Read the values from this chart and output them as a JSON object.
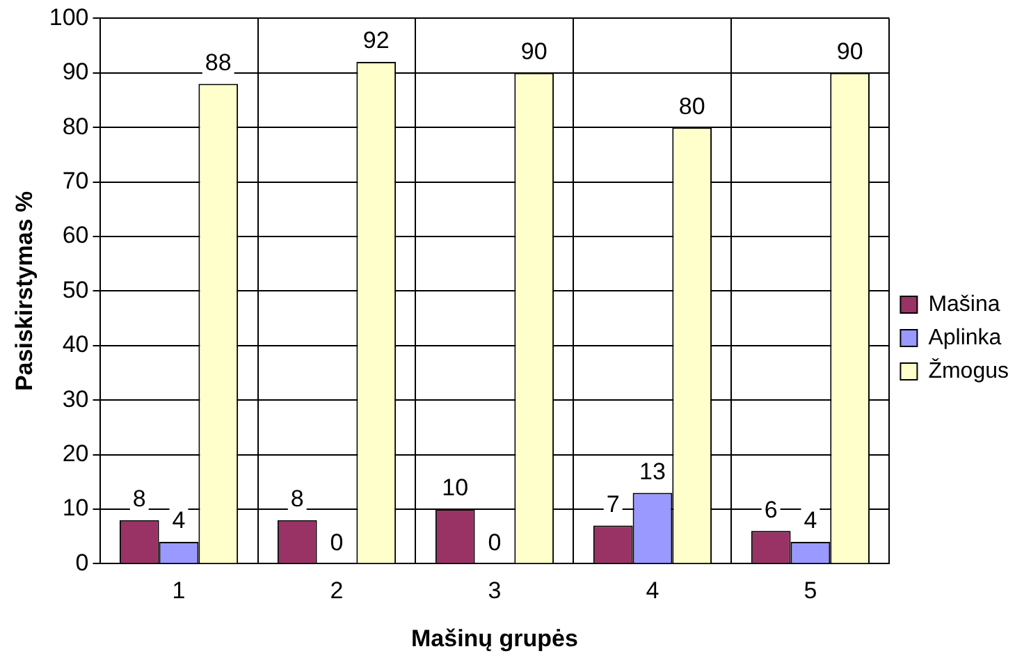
{
  "chart_data": {
    "type": "bar",
    "xlabel": "Mašinų grupės",
    "ylabel": "Pasiskirstymas %",
    "categories": [
      "1",
      "2",
      "3",
      "4",
      "5"
    ],
    "series": [
      {
        "name": "Mašina",
        "color": "#993366",
        "values": [
          8,
          8,
          10,
          7,
          6
        ]
      },
      {
        "name": "Aplinka",
        "color": "#9999ff",
        "values": [
          4,
          0,
          0,
          13,
          4
        ]
      },
      {
        "name": "Žmogus",
        "color": "#ffffcc",
        "values": [
          88,
          92,
          90,
          80,
          90
        ]
      }
    ],
    "ylim": [
      0,
      100
    ],
    "yticks": [
      0,
      10,
      20,
      30,
      40,
      50,
      60,
      70,
      80,
      90,
      100
    ],
    "grid": true,
    "legend": "right",
    "data_labels": true
  }
}
